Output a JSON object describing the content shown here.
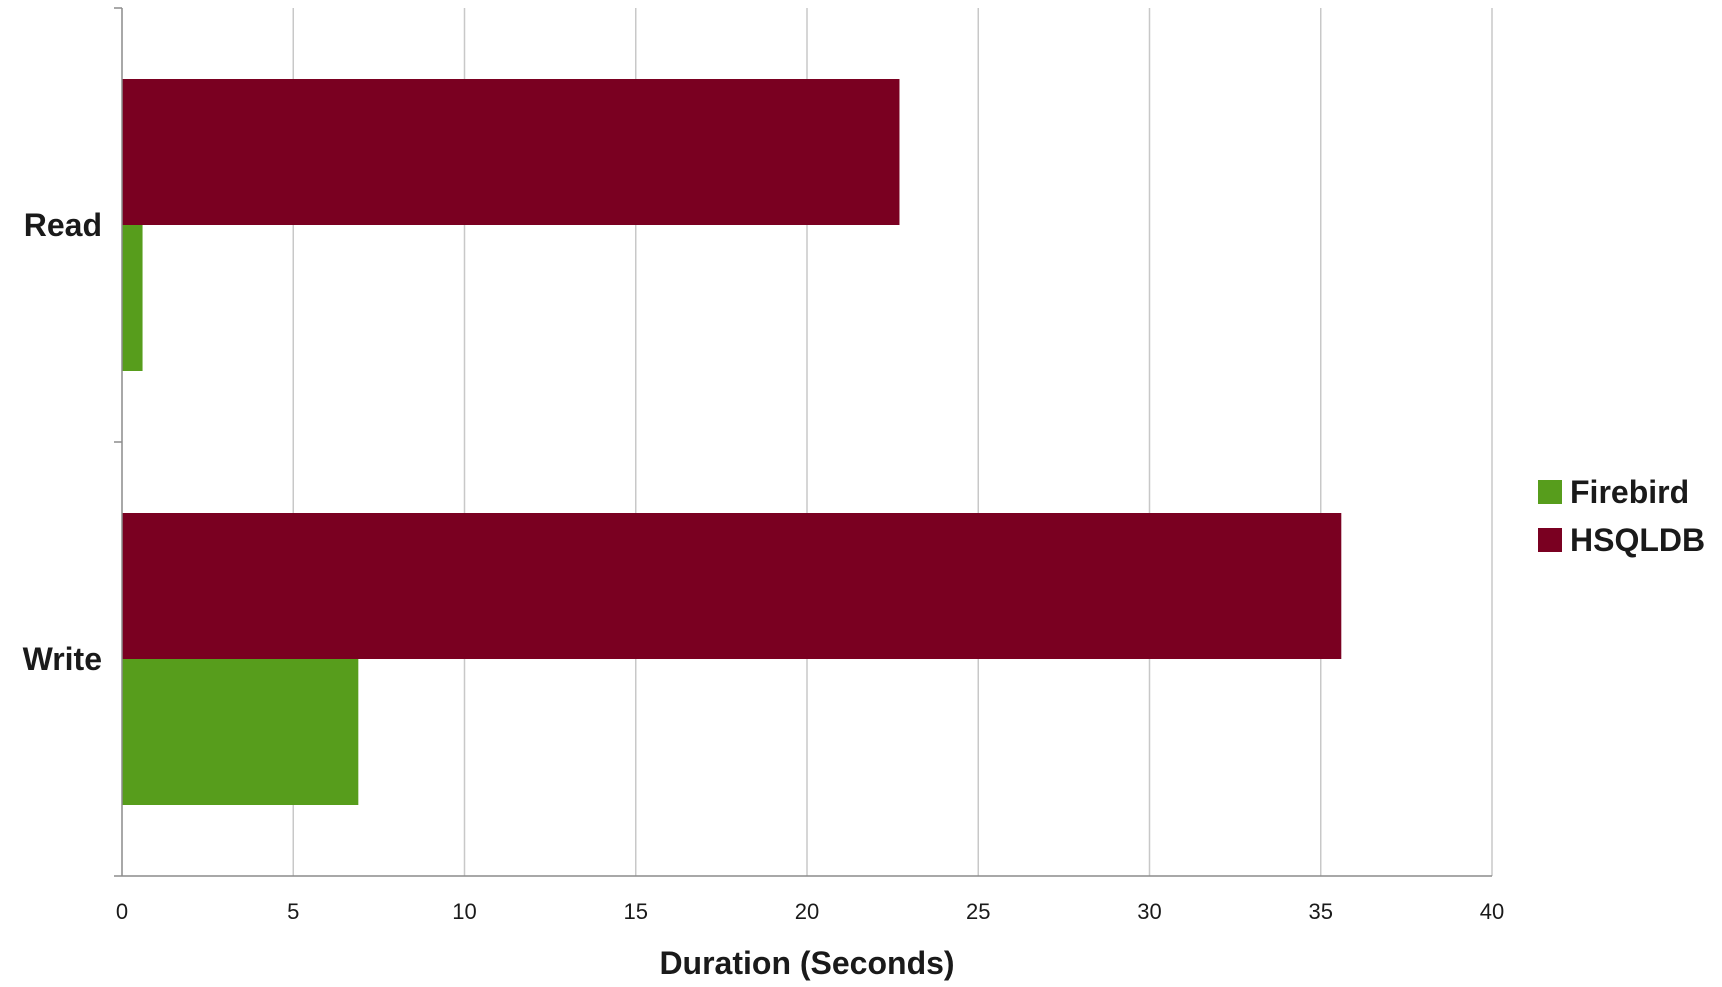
{
  "chart_data": {
    "type": "bar",
    "orientation": "horizontal",
    "categories": [
      "Read",
      "Write"
    ],
    "series": [
      {
        "name": "HSQLDB",
        "color": "#7a0021",
        "values": [
          22.7,
          35.6
        ]
      },
      {
        "name": "Firebird",
        "color": "#579d1c",
        "values": [
          0.6,
          6.9
        ]
      }
    ],
    "legend_order": [
      "Firebird",
      "HSQLDB"
    ],
    "xlabel": "Duration (Seconds)",
    "ylabel": "",
    "xlim": [
      0,
      40
    ],
    "xticks": [
      0,
      5,
      10,
      15,
      20,
      25,
      30,
      35,
      40
    ],
    "grid": true,
    "legend_position": "right"
  }
}
